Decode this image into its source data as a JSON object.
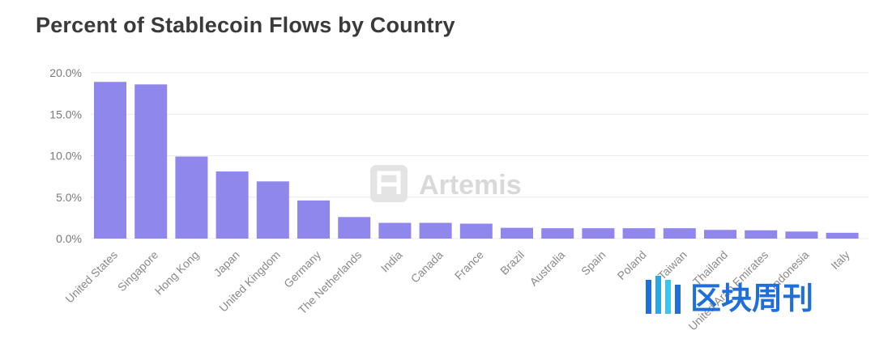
{
  "chart_data": {
    "type": "bar",
    "title": "Percent of Stablecoin Flows by Country",
    "xlabel": "",
    "ylabel": "",
    "ylim": [
      0,
      20
    ],
    "yticks": [
      "0.0%",
      "5.0%",
      "10.0%",
      "15.0%",
      "20.0%"
    ],
    "grid": true,
    "bar_color": "#9087ec",
    "categories": [
      "United States",
      "Singapore",
      "Hong Kong",
      "Japan",
      "United Kingdom",
      "Germany",
      "The Netherlands",
      "India",
      "Canada",
      "France",
      "Brazil",
      "Australia",
      "Spain",
      "Poland",
      "Taiwan",
      "Thailand",
      "United Arab Emirates",
      "Indonesia",
      "Italy"
    ],
    "values": [
      18.9,
      18.6,
      9.9,
      8.1,
      6.9,
      4.6,
      2.6,
      1.9,
      1.9,
      1.8,
      1.3,
      1.25,
      1.25,
      1.25,
      1.25,
      1.05,
      1.0,
      0.85,
      0.7
    ]
  },
  "watermark": {
    "text": "Artemis"
  },
  "logo2": {
    "text": "区块周刊"
  }
}
